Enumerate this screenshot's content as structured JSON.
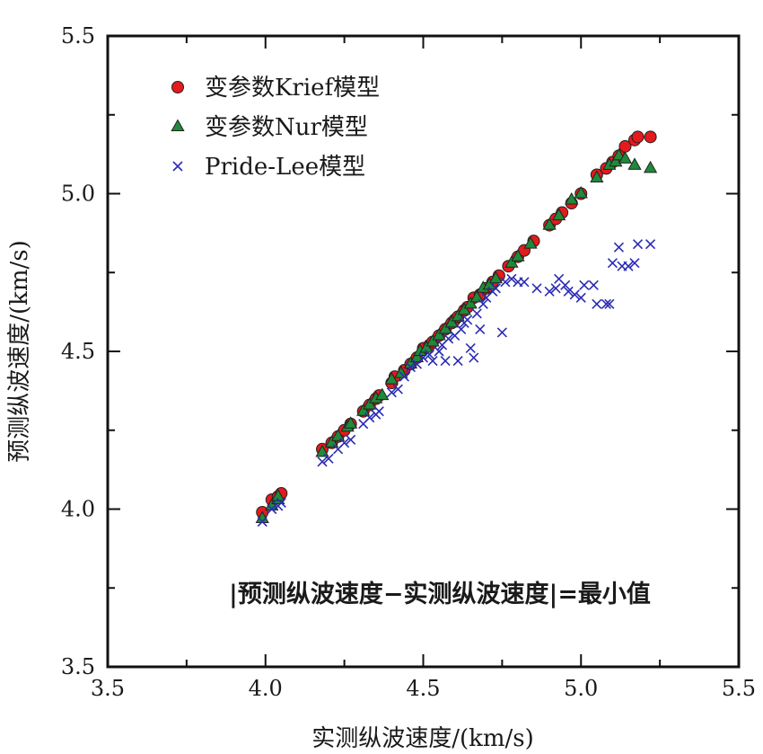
{
  "chart_data": {
    "type": "scatter",
    "xlabel": "实测纵波速度/(km/s)",
    "ylabel": "预测纵波速度/(km/s)",
    "xlim": [
      3.5,
      5.5
    ],
    "ylim": [
      3.5,
      5.5
    ],
    "xticks": [
      "3.5",
      "4.0",
      "4.5",
      "5.0",
      "5.5"
    ],
    "yticks": [
      "3.5",
      "4.0",
      "4.5",
      "5.0",
      "5.5"
    ],
    "grid": false,
    "legend_position": "top-left",
    "annotation": "|预测纵波速度−实测纵波速度|=最小值",
    "series": [
      {
        "name": "变参数Krief模型",
        "marker": "circle",
        "color": "#e41a1c",
        "points": [
          [
            3.99,
            3.99
          ],
          [
            4.02,
            4.03
          ],
          [
            4.04,
            4.04
          ],
          [
            4.05,
            4.05
          ],
          [
            4.18,
            4.19
          ],
          [
            4.21,
            4.21
          ],
          [
            4.23,
            4.23
          ],
          [
            4.25,
            4.25
          ],
          [
            4.27,
            4.27
          ],
          [
            4.31,
            4.31
          ],
          [
            4.33,
            4.33
          ],
          [
            4.35,
            4.35
          ],
          [
            4.36,
            4.36
          ],
          [
            4.4,
            4.4
          ],
          [
            4.41,
            4.42
          ],
          [
            4.44,
            4.44
          ],
          [
            4.46,
            4.46
          ],
          [
            4.48,
            4.48
          ],
          [
            4.5,
            4.51
          ],
          [
            4.52,
            4.52
          ],
          [
            4.53,
            4.53
          ],
          [
            4.55,
            4.55
          ],
          [
            4.57,
            4.57
          ],
          [
            4.59,
            4.59
          ],
          [
            4.6,
            4.6
          ],
          [
            4.61,
            4.61
          ],
          [
            4.63,
            4.63
          ],
          [
            4.64,
            4.64
          ],
          [
            4.66,
            4.67
          ],
          [
            4.68,
            4.68
          ],
          [
            4.7,
            4.7
          ],
          [
            4.72,
            4.72
          ],
          [
            4.74,
            4.74
          ],
          [
            4.77,
            4.77
          ],
          [
            4.8,
            4.8
          ],
          [
            4.82,
            4.82
          ],
          [
            4.85,
            4.85
          ],
          [
            4.9,
            4.9
          ],
          [
            4.92,
            4.92
          ],
          [
            4.94,
            4.94
          ],
          [
            4.97,
            4.97
          ],
          [
            5.0,
            5.0
          ],
          [
            5.05,
            5.06
          ],
          [
            5.08,
            5.08
          ],
          [
            5.1,
            5.1
          ],
          [
            5.12,
            5.12
          ],
          [
            5.14,
            5.15
          ],
          [
            5.17,
            5.17
          ],
          [
            5.18,
            5.18
          ],
          [
            5.22,
            5.18
          ]
        ]
      },
      {
        "name": "变参数Nur模型",
        "marker": "triangle",
        "color": "#1f8a3a",
        "points": [
          [
            3.99,
            3.97
          ],
          [
            4.02,
            4.01
          ],
          [
            4.04,
            4.03
          ],
          [
            4.04,
            4.04
          ],
          [
            4.18,
            4.18
          ],
          [
            4.21,
            4.21
          ],
          [
            4.23,
            4.23
          ],
          [
            4.26,
            4.26
          ],
          [
            4.27,
            4.27
          ],
          [
            4.31,
            4.31
          ],
          [
            4.33,
            4.33
          ],
          [
            4.35,
            4.35
          ],
          [
            4.37,
            4.36
          ],
          [
            4.4,
            4.41
          ],
          [
            4.43,
            4.43
          ],
          [
            4.46,
            4.46
          ],
          [
            4.48,
            4.48
          ],
          [
            4.49,
            4.5
          ],
          [
            4.51,
            4.51
          ],
          [
            4.53,
            4.53
          ],
          [
            4.55,
            4.55
          ],
          [
            4.57,
            4.57
          ],
          [
            4.59,
            4.59
          ],
          [
            4.61,
            4.61
          ],
          [
            4.63,
            4.63
          ],
          [
            4.65,
            4.65
          ],
          [
            4.67,
            4.67
          ],
          [
            4.69,
            4.7
          ],
          [
            4.71,
            4.71
          ],
          [
            4.73,
            4.73
          ],
          [
            4.78,
            4.78
          ],
          [
            4.8,
            4.8
          ],
          [
            4.84,
            4.84
          ],
          [
            4.9,
            4.9
          ],
          [
            4.93,
            4.93
          ],
          [
            4.97,
            4.98
          ],
          [
            5.0,
            5.0
          ],
          [
            5.05,
            5.05
          ],
          [
            5.09,
            5.09
          ],
          [
            5.11,
            5.1
          ],
          [
            5.12,
            5.12
          ],
          [
            5.14,
            5.11
          ],
          [
            5.17,
            5.09
          ],
          [
            5.22,
            5.08
          ]
        ]
      },
      {
        "name": "Pride-Lee模型",
        "marker": "x",
        "color": "#2b2bb5",
        "points": [
          [
            3.99,
            3.96
          ],
          [
            4.02,
            4.0
          ],
          [
            4.04,
            4.01
          ],
          [
            4.05,
            4.02
          ],
          [
            4.18,
            4.15
          ],
          [
            4.2,
            4.16
          ],
          [
            4.23,
            4.19
          ],
          [
            4.25,
            4.21
          ],
          [
            4.27,
            4.22
          ],
          [
            4.31,
            4.27
          ],
          [
            4.33,
            4.29
          ],
          [
            4.35,
            4.3
          ],
          [
            4.36,
            4.31
          ],
          [
            4.4,
            4.37
          ],
          [
            4.42,
            4.38
          ],
          [
            4.44,
            4.42
          ],
          [
            4.46,
            4.45
          ],
          [
            4.48,
            4.46
          ],
          [
            4.5,
            4.48
          ],
          [
            4.52,
            4.49
          ],
          [
            4.53,
            4.47
          ],
          [
            4.55,
            4.5
          ],
          [
            4.56,
            4.52
          ],
          [
            4.57,
            4.47
          ],
          [
            4.58,
            4.54
          ],
          [
            4.6,
            4.55
          ],
          [
            4.61,
            4.47
          ],
          [
            4.62,
            4.57
          ],
          [
            4.63,
            4.59
          ],
          [
            4.64,
            4.6
          ],
          [
            4.65,
            4.51
          ],
          [
            4.66,
            4.48
          ],
          [
            4.67,
            4.62
          ],
          [
            4.68,
            4.57
          ],
          [
            4.69,
            4.65
          ],
          [
            4.7,
            4.67
          ],
          [
            4.72,
            4.69
          ],
          [
            4.73,
            4.7
          ],
          [
            4.75,
            4.56
          ],
          [
            4.76,
            4.72
          ],
          [
            4.78,
            4.73
          ],
          [
            4.8,
            4.72
          ],
          [
            4.82,
            4.72
          ],
          [
            4.86,
            4.7
          ],
          [
            4.9,
            4.69
          ],
          [
            4.92,
            4.7
          ],
          [
            4.93,
            4.73
          ],
          [
            4.95,
            4.71
          ],
          [
            4.96,
            4.69
          ],
          [
            4.98,
            4.68
          ],
          [
            5.0,
            4.67
          ],
          [
            5.01,
            4.71
          ],
          [
            5.04,
            4.71
          ],
          [
            5.05,
            4.65
          ],
          [
            5.08,
            4.65
          ],
          [
            5.09,
            4.65
          ],
          [
            5.1,
            4.78
          ],
          [
            5.12,
            4.83
          ],
          [
            5.13,
            4.77
          ],
          [
            5.15,
            4.77
          ],
          [
            5.17,
            4.78
          ],
          [
            5.18,
            4.84
          ],
          [
            5.22,
            4.84
          ]
        ]
      }
    ]
  }
}
